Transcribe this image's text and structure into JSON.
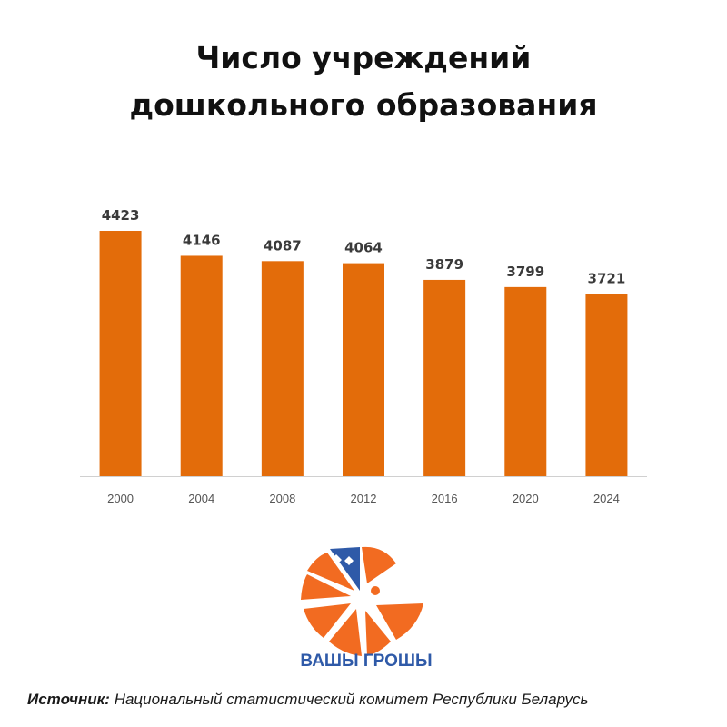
{
  "chart_data": {
    "type": "bar",
    "title_lines": [
      "Число учреждений",
      "дошкольного образования"
    ],
    "categories": [
      "2000",
      "2004",
      "2008",
      "2012",
      "2016",
      "2020",
      "2024"
    ],
    "values": [
      4423,
      4146,
      4087,
      4064,
      3879,
      3799,
      3721
    ],
    "ylim": [
      1700,
      4500
    ],
    "grid": false,
    "data_labels": true,
    "bar_color": "#E36C0A"
  },
  "logo": {
    "text": "ВАШЫ ГРОШЫ",
    "colors": {
      "orange": "#F26B21",
      "blue": "#2F5AA8"
    }
  },
  "source": {
    "label": "Источник:",
    "text": "Национальный статистический комитет Республики Беларусь"
  }
}
